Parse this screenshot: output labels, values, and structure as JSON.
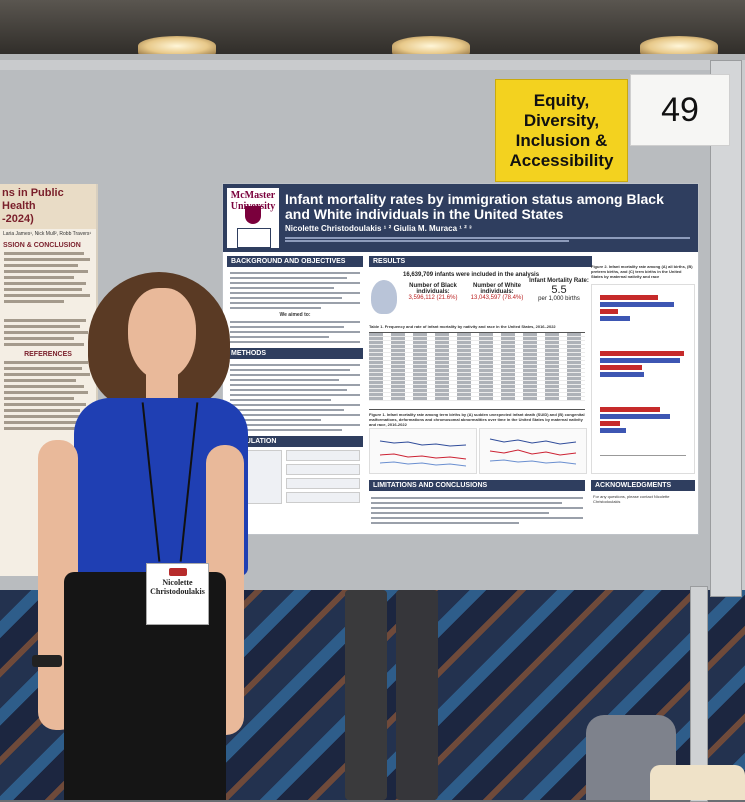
{
  "sign": {
    "lines": [
      "Equity,",
      "Diversity,",
      "Inclusion &",
      "Accessibility"
    ]
  },
  "booth_number": "49",
  "left_poster": {
    "title": "ns in Public Health\n-2024)",
    "authors": "Laria James¹, Nick Mull², Robb Travers¹",
    "section_conclusion": "SSION & CONCLUSION",
    "section_references": "REFERENCES"
  },
  "poster": {
    "university": "McMaster University",
    "title": "Infant mortality rates by immigration status among Black and White individuals in the United States",
    "authors": "Nicolette Christodoulakis ¹ ² Giulia M. Muraca ¹ ² ³",
    "sections": {
      "background": "BACKGROUND AND OBJECTIVES",
      "results": "RESULTS",
      "methods": "METHODS",
      "population": "POPULATION",
      "limitations": "LIMITATIONS AND CONCLUSIONS",
      "acknowledgments": "ACKNOWLEDGMENTS"
    },
    "aim_label": "We aimed to:",
    "stats": {
      "infants_line": "16,639,709 infants were included in the analysis",
      "black_label": "Number of Black individuals:",
      "black_value": "3,596,112 (21.6%)",
      "white_label": "Number of White individuals:",
      "white_value": "13,043,597 (78.4%)",
      "rate_label": "Infant Mortality Rate:",
      "rate_value": "5.5",
      "rate_unit": "per 1,000 births"
    },
    "table1_caption": "Table 1. Frequency and rate of infant mortality by nativity and race in the United States, 2016–2022",
    "figure1_caption": "Figure 1. Infant mortality rate among term births by (A) sudden unexpected infant death (SUID) and (B) congenital malformations, deformations and chromosomal abnormalities over time in the United States by maternal nativity and race, 2016-2022",
    "figure2_caption": "Figure 2. Infant mortality rate among (A) all births, (B) preterm births, and (C) term births in the United States by maternal nativity and race",
    "contact": "For any questions, please contact Nicolette Christodoulakis"
  },
  "name_badge": {
    "first": "Nicolette",
    "last": "Christodoulakis"
  }
}
